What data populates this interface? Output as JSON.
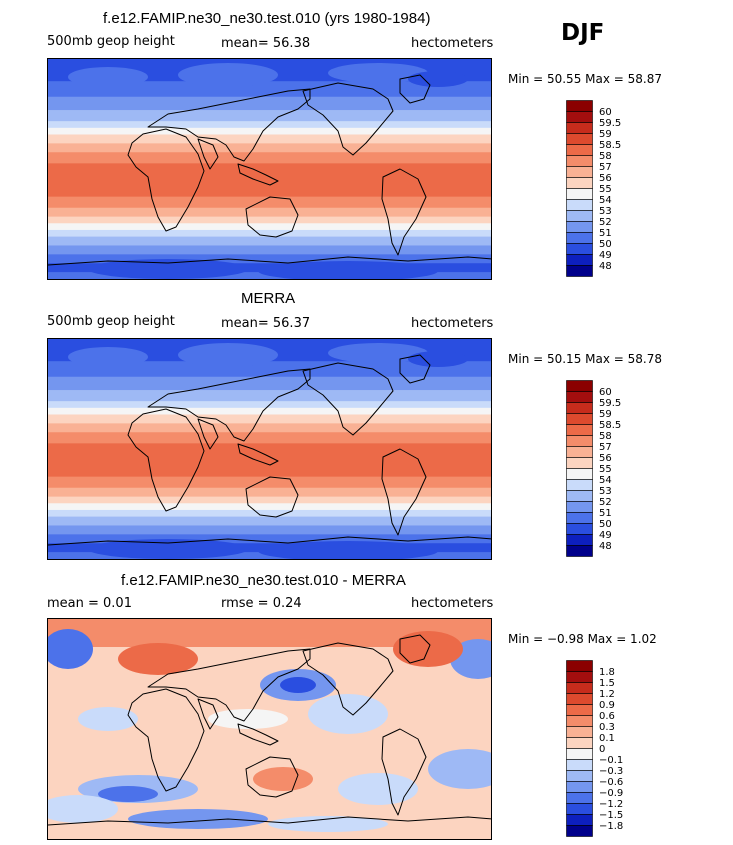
{
  "season_label": "DJF",
  "colors": {
    "abs_scale": [
      "#00008b",
      "#0d1fbf",
      "#2a4ee0",
      "#4c72ea",
      "#7496ef",
      "#9eb9f5",
      "#c9dbfa",
      "#f5f5f5",
      "#fcd4c0",
      "#f9b194",
      "#f48c6a",
      "#ec6a48",
      "#dd4a2e",
      "#c72c1c",
      "#a30e0e",
      "#8b0000"
    ],
    "diff_scale": [
      "#00008b",
      "#0d1fbf",
      "#2a4ee0",
      "#4c72ea",
      "#7496ef",
      "#9eb9f5",
      "#c9dbfa",
      "#f5f5f5",
      "#fcd4c0",
      "#f9b194",
      "#f48c6a",
      "#ec6a48",
      "#dd4a2e",
      "#c72c1c",
      "#a30e0e",
      "#8b0000"
    ],
    "coastline": "#000000"
  },
  "panels": [
    {
      "title": "f.e12.FAMIP.ne30_ne30.test.010 (yrs 1980-1984)",
      "left_text": "500mb geop height",
      "mid_text": "mean=  56.38",
      "units": "hectometers",
      "minmax": "Min =  50.55 Max =  58.87",
      "levels": [
        "60",
        "59.5",
        "59",
        "58.5",
        "58",
        "57",
        "56",
        "55",
        "54",
        "53",
        "52",
        "51",
        "50",
        "49",
        "48"
      ],
      "field": "absolute"
    },
    {
      "title": "MERRA",
      "left_text": "500mb geop height",
      "mid_text": "mean=  56.37",
      "units": "hectometers",
      "minmax": "Min =  50.15 Max =  58.78",
      "levels": [
        "60",
        "59.5",
        "59",
        "58.5",
        "58",
        "57",
        "56",
        "55",
        "54",
        "53",
        "52",
        "51",
        "50",
        "49",
        "48"
      ],
      "field": "absolute"
    },
    {
      "title": "f.e12.FAMIP.ne30_ne30.test.010 - MERRA",
      "left_text": "mean =   0.01",
      "mid_text": "rmse =   0.24",
      "units": "hectometers",
      "minmax": "Min =  −0.98 Max =   1.02",
      "levels": [
        "1.8",
        "1.5",
        "1.2",
        "0.9",
        "0.6",
        "0.3",
        "0.1",
        "0",
        "−0.1",
        "−0.3",
        "−0.6",
        "−0.9",
        "−1.2",
        "−1.5",
        "−1.8"
      ],
      "field": "difference"
    }
  ],
  "chart_data": [
    {
      "type": "heatmap",
      "title": "f.e12.FAMIP.ne30_ne30.test.010 (yrs 1980-1984)",
      "variable": "500mb geop height",
      "units": "hectometers",
      "mean": 56.38,
      "min": 50.55,
      "max": 58.87,
      "contour_levels": [
        48,
        49,
        50,
        51,
        52,
        53,
        54,
        55,
        56,
        57,
        58,
        58.5,
        59,
        59.5,
        60
      ]
    },
    {
      "type": "heatmap",
      "title": "MERRA",
      "variable": "500mb geop height",
      "units": "hectometers",
      "mean": 56.37,
      "min": 50.15,
      "max": 58.78,
      "contour_levels": [
        48,
        49,
        50,
        51,
        52,
        53,
        54,
        55,
        56,
        57,
        58,
        58.5,
        59,
        59.5,
        60
      ]
    },
    {
      "type": "heatmap",
      "title": "f.e12.FAMIP.ne30_ne30.test.010 - MERRA",
      "units": "hectometers",
      "mean": 0.01,
      "rmse": 0.24,
      "min": -0.98,
      "max": 1.02,
      "contour_levels": [
        -1.8,
        -1.5,
        -1.2,
        -0.9,
        -0.6,
        -0.3,
        -0.1,
        0,
        0.1,
        0.3,
        0.6,
        0.9,
        1.2,
        1.5,
        1.8
      ]
    }
  ]
}
